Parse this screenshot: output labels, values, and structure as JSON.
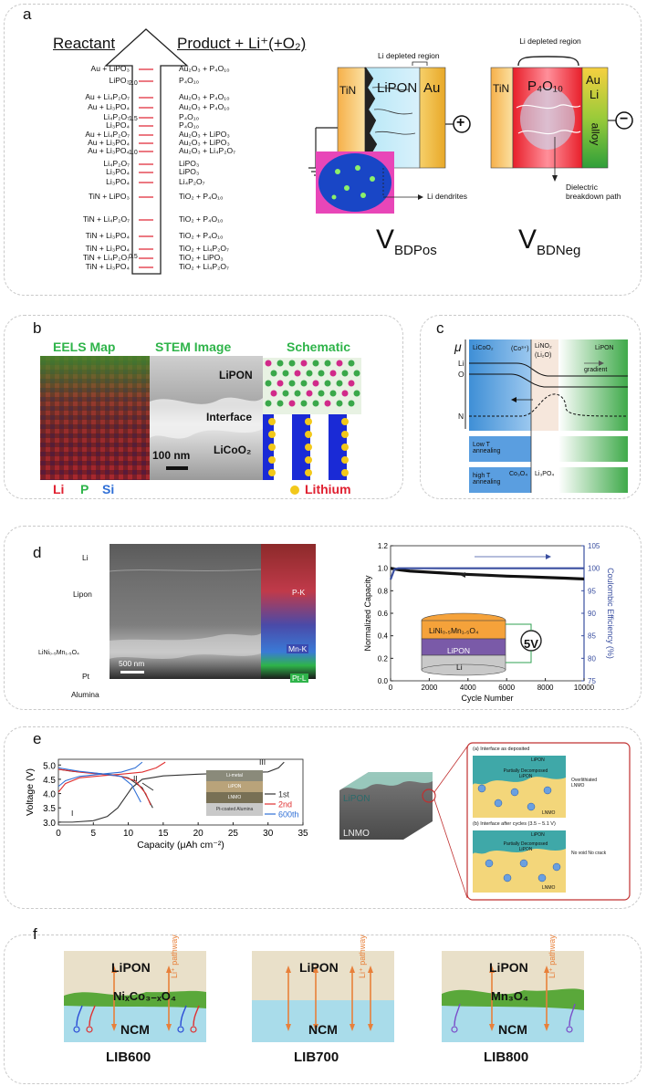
{
  "figure": {
    "panel_a": {
      "label": "a",
      "reactant_header": "Reactant",
      "product_header": "Product + Li⁺(+O₂)",
      "reactants": [
        "Au + LiPO₃",
        "LiPO₃",
        "Au + Li₄P₂O₇",
        "Au + Li₃PO₄",
        "Li₄P₂O₇",
        "Li₃PO₄",
        "Au + Li₄P₂O₇",
        "Au + Li₃PO₄",
        "Au + Li₃PO₄",
        "Li₄P₂O₇",
        "Li₃PO₄",
        "Li₃PO₄",
        "TiN + LiPO₃",
        "TiN + Li₄P₂O₇",
        "TiN + Li₃PO₄",
        "TiN + Li₃PO₄",
        "TiN + Li₄P₂O₇",
        "TiN + Li₃PO₄"
      ],
      "products": [
        "Au₂O₃ + P₄O₁₀",
        "P₄O₁₀",
        "Au₂O₃ + P₄O₁₀",
        "Au₂O₃ + P₄O₁₀",
        "P₄O₁₀",
        "P₄O₁₀",
        "Au₂O₃ + LiPO₃",
        "Au₂O₃ + LiPO₃",
        "Au₂O₃ + Li₄P₂O₇",
        "LiPO₃",
        "LiPO₃",
        "Li₄P₂O₇",
        "TiO₂ + P₄O₁₀",
        "TiO₂ + P₄O₁₀",
        "TiO₂ + P₄O₁₀",
        "TiO₂ + Li₄P₂O₇",
        "TiO₂ + LiPO₃",
        "TiO₂ + Li₄P₂O₇"
      ],
      "scale_ticks": [
        "2.0",
        "1.5",
        "1.0",
        "0.5"
      ],
      "pos_cell": {
        "depleted": "Li depleted region",
        "tin": "TiN",
        "lipon": "LiPON",
        "au": "Au",
        "dendrites": "Li dendrites",
        "sign": "+"
      },
      "neg_cell": {
        "depleted": "Li depleted region",
        "tin": "TiN",
        "p4o10": "P₄O₁₀",
        "au": "Au",
        "li": "Li",
        "alloy": "alloy",
        "breakdown": "Dielectric breakdown path",
        "sign": "−"
      },
      "v_pos": "V",
      "v_pos_sub": "BDPos",
      "v_neg": "V",
      "v_neg_sub": "BDNeg"
    },
    "panel_b": {
      "label": "b",
      "titles": [
        "EELS Map",
        "STEM Image",
        "Schematic"
      ],
      "stem_labels": [
        "LiPON",
        "Interface",
        "LiCoO₂"
      ],
      "scalebar": "100 nm",
      "legend": [
        "Li",
        "P",
        "Si"
      ],
      "lithium": "Lithium"
    },
    "panel_c": {
      "label": "c",
      "mu": "μ",
      "regions": [
        "LiCoO₂",
        "(Co³⁺)",
        "LiNO₂",
        "(Li₂O)",
        "LiPON"
      ],
      "levels": [
        "Li",
        "O",
        "N"
      ],
      "gradient": "gradient",
      "low_t": "Low T annealing",
      "high_t": "high T annealing",
      "co3o4": "Co₃O₄",
      "li3po4": "Li₃PO₄"
    },
    "panel_d": {
      "label": "d",
      "layers": [
        "Li",
        "Lipon",
        "LiNi₀.₅Mn₁.₅O₄",
        "Pt",
        "Alumina"
      ],
      "scalebar": "500 nm",
      "eds": [
        "P-K",
        "Mn-K",
        "Pt-L"
      ],
      "inset": {
        "top": "LiNi₀.₅Mn₁.₅O₄",
        "mid": "LiPON",
        "bot": "Li",
        "voltage": "5V"
      }
    },
    "panel_e": {
      "label": "e",
      "regions": [
        "I",
        "II",
        "III"
      ],
      "inset_layers": [
        "Li-metal",
        "LiPON",
        "LNMO",
        "Pt-coated Alumina"
      ],
      "schematic_lipon": "LiPON",
      "schematic_lnmo": "LNMO",
      "box_a_title": "(a) Interface as deposited",
      "box_a_labels": [
        "LiPON",
        "Partially Decomposed LiPON",
        "Overlithiated LNMO",
        "LNMO"
      ],
      "box_b_title": "(b) Interface after cycles (3.5 – 5.1 V)",
      "box_b_labels": [
        "LiPON",
        "Partially Decomposed LiPON",
        "No void No crack",
        "LNMO"
      ]
    },
    "panel_f": {
      "label": "f",
      "cells": [
        {
          "top": "LiPON",
          "mid": "NiₓCo₃₋ₓO₄",
          "bottom": "NCM",
          "pathway": "Li⁺ pathway",
          "name": "LIB600"
        },
        {
          "top": "LiPON",
          "mid": "",
          "bottom": "NCM",
          "pathway": "Li⁺ pathway",
          "name": "LIB700"
        },
        {
          "top": "LiPON",
          "mid": "Mn₃O₄",
          "bottom": "NCM",
          "pathway": "Li⁺ pathway",
          "name": "LIB800"
        }
      ]
    }
  },
  "chart_data": [
    {
      "type": "line",
      "xlabel": "Cycle Number",
      "ylabel": "Normalized Capacity",
      "ylabel2": "Coulombic Efficiency (%)",
      "xlim": [
        0,
        10000
      ],
      "ylim": [
        0,
        1.2
      ],
      "ylim2": [
        75,
        105
      ],
      "xticks": [
        0,
        2000,
        4000,
        6000,
        8000,
        10000
      ],
      "yticks": [
        0.0,
        0.2,
        0.4,
        0.6,
        0.8,
        1.0,
        1.2
      ],
      "yticks2": [
        75,
        80,
        85,
        90,
        95,
        100,
        105
      ],
      "series": [
        {
          "axis": "left",
          "color": "#111111",
          "x": [
            0,
            500,
            1000,
            2000,
            3000,
            4000,
            5000,
            6000,
            7000,
            8000,
            9000,
            10000
          ],
          "values": [
            1.0,
            0.985,
            0.975,
            0.965,
            0.955,
            0.945,
            0.938,
            0.93,
            0.925,
            0.918,
            0.912,
            0.905
          ]
        },
        {
          "axis": "right",
          "color": "#3a4fa0",
          "x": [
            0,
            200,
            400,
            10000
          ],
          "values": [
            97.5,
            99.8,
            100.0,
            100.0
          ]
        }
      ]
    },
    {
      "type": "line",
      "xlabel": "Capacity (μAh cm⁻²)",
      "ylabel": "Voltage (V)",
      "xlim": [
        0,
        35
      ],
      "ylim": [
        2.9,
        5.2
      ],
      "xticks": [
        0,
        5,
        10,
        15,
        20,
        25,
        30,
        35
      ],
      "yticks": [
        3.0,
        3.5,
        4.0,
        4.5,
        5.0
      ],
      "series": [
        {
          "name": "1st",
          "color": "#333333",
          "x": [
            0,
            2,
            5,
            7,
            8.5,
            9.5,
            10.5,
            12,
            15,
            20,
            25,
            30,
            31.5,
            32.3
          ],
          "values": [
            3.0,
            3.0,
            3.05,
            3.2,
            3.5,
            3.85,
            4.2,
            4.5,
            4.62,
            4.68,
            4.72,
            4.76,
            4.9,
            5.1
          ]
        },
        {
          "name": "1st",
          "color": "#333333",
          "x": [
            0,
            2,
            5,
            8,
            10,
            12,
            13.5
          ],
          "values": [
            4.85,
            4.78,
            4.72,
            4.65,
            4.55,
            4.2,
            3.5
          ]
        },
        {
          "name": "2nd",
          "color": "#e03030",
          "x": [
            0,
            1,
            3,
            6,
            9,
            12,
            14,
            15.3
          ],
          "values": [
            4.05,
            4.35,
            4.55,
            4.62,
            4.68,
            4.75,
            4.9,
            5.1
          ]
        },
        {
          "name": "2nd",
          "color": "#e03030",
          "x": [
            0,
            3,
            6,
            9,
            11,
            12.5,
            13.2
          ],
          "values": [
            4.85,
            4.75,
            4.68,
            4.6,
            4.45,
            4.0,
            3.6
          ]
        },
        {
          "name": "600th",
          "color": "#2f6fd6",
          "x": [
            0,
            1,
            3,
            6,
            9,
            11,
            12
          ],
          "values": [
            4.25,
            4.45,
            4.6,
            4.68,
            4.75,
            4.9,
            5.1
          ]
        },
        {
          "name": "600th",
          "color": "#2f6fd6",
          "x": [
            0,
            3,
            6,
            9,
            10.5,
            11.8
          ],
          "values": [
            4.9,
            4.78,
            4.7,
            4.6,
            4.3,
            3.7
          ]
        }
      ]
    }
  ]
}
